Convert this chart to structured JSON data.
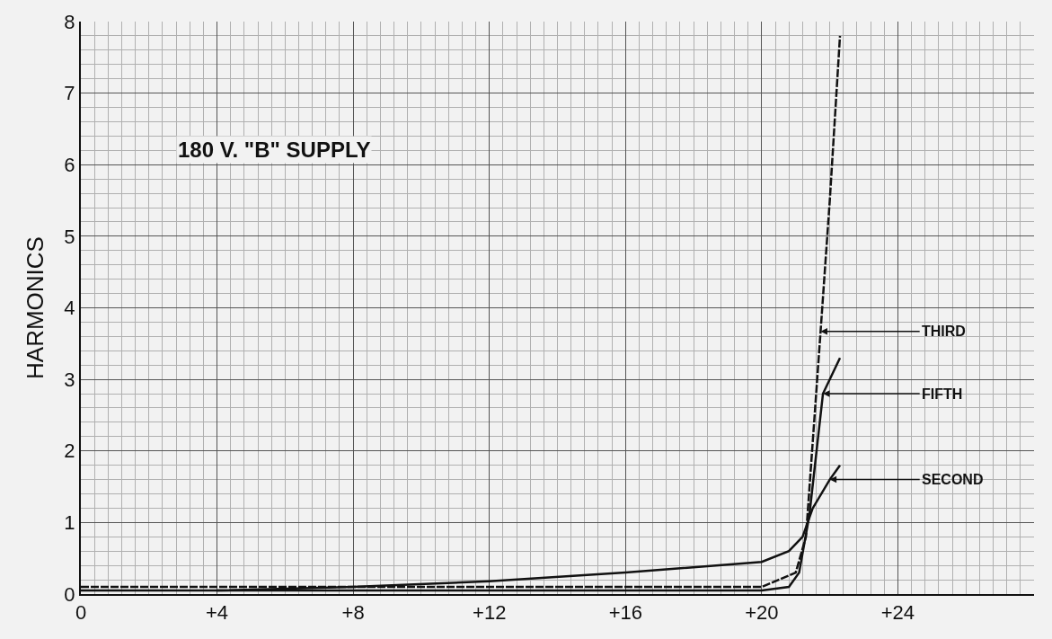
{
  "chart_data": {
    "type": "line",
    "ylabel": "HARMONICS",
    "annotations": [
      "180 V. \"B\" SUPPLY",
      {
        "text": "THIRD",
        "x": 21.73,
        "y": 3.67
      },
      {
        "text": "FIFTH",
        "x": 21.8,
        "y": 2.8
      },
      {
        "text": "SECOND",
        "x": 22.0,
        "y": 1.6
      }
    ],
    "series": [
      {
        "color": "#111111",
        "line_style": "dashed",
        "x": [
          0,
          4,
          8,
          12,
          16,
          20,
          21,
          21.3,
          21.6,
          21.73,
          22.0,
          22.3
        ],
        "values": [
          0.1,
          0.1,
          0.1,
          0.1,
          0.1,
          0.1,
          0.3,
          0.8,
          2.8,
          3.67,
          5.5,
          7.8
        ]
      },
      {
        "color": "#111111",
        "line_style": "solid",
        "x": [
          0,
          4,
          8,
          12,
          16,
          20,
          20.8,
          21.1,
          21.4,
          21.8,
          22.3
        ],
        "values": [
          0.05,
          0.05,
          0.05,
          0.05,
          0.05,
          0.05,
          0.1,
          0.3,
          1.1,
          2.8,
          3.3
        ]
      },
      {
        "color": "#111111",
        "line_style": "solid",
        "x": [
          4,
          8,
          12,
          16,
          20,
          20.8,
          21.2,
          21.5,
          22.0,
          22.3
        ],
        "values": [
          0.05,
          0.1,
          0.18,
          0.3,
          0.45,
          0.6,
          0.8,
          1.2,
          1.6,
          1.8
        ]
      }
    ],
    "xlim": [
      0,
      28
    ],
    "ylim": [
      0,
      8
    ],
    "xticks": [
      0,
      {
        "value": 4,
        "label": "+4"
      },
      {
        "value": 8,
        "label": "+8"
      },
      {
        "value": 12,
        "label": "+12"
      },
      {
        "value": 16,
        "label": "+16"
      },
      {
        "value": 20,
        "label": "+20"
      },
      {
        "value": 24,
        "label": "+24"
      }
    ],
    "yticks": [
      0,
      1,
      2,
      3,
      4,
      5,
      6,
      7,
      8
    ],
    "grid": true,
    "marker": "none"
  }
}
